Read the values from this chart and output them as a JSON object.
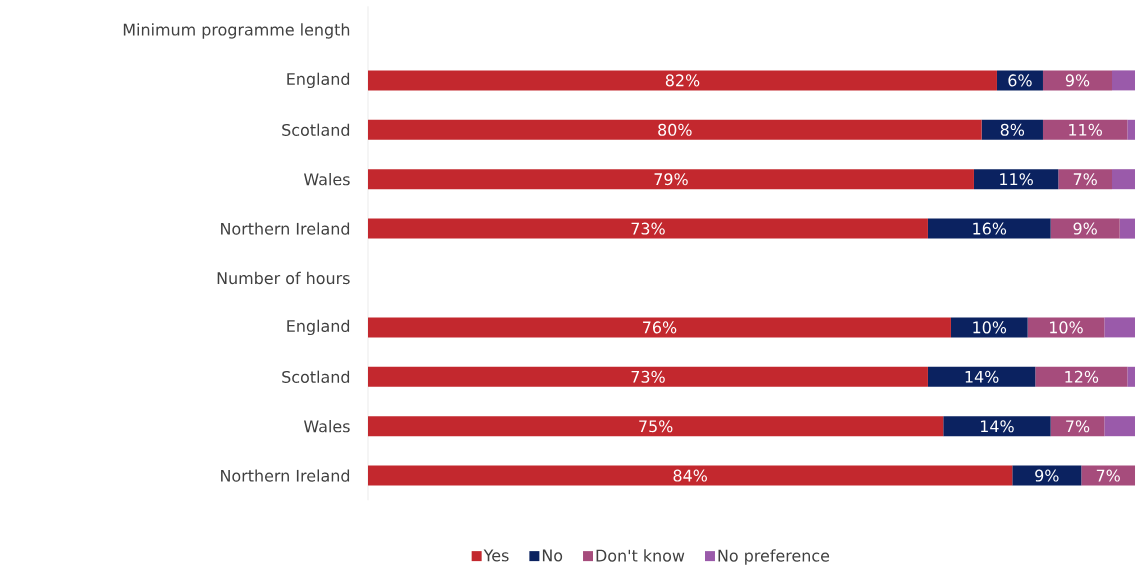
{
  "chart_data": {
    "type": "bar",
    "orientation": "horizontal",
    "stacked": true,
    "legend": "bottom",
    "categories": [
      "Minimum programme length",
      "England",
      "Scotland",
      "Wales",
      "Northern Ireland",
      "Number of hours",
      "England",
      "Scotland",
      "Wales",
      "Northern Ireland"
    ],
    "series": [
      {
        "name": "Yes",
        "color": "#c3282e",
        "values": [
          null,
          82,
          80,
          79,
          73,
          null,
          76,
          73,
          75,
          84
        ],
        "value_labels": [
          null,
          "82%",
          "80%",
          "79%",
          "73%",
          null,
          "76%",
          "73%",
          "75%",
          "84%"
        ]
      },
      {
        "name": "No",
        "color": "#0b2260",
        "values": [
          null,
          6,
          8,
          11,
          16,
          null,
          10,
          14,
          14,
          9
        ],
        "value_labels": [
          null,
          "6%",
          "8%",
          "11%",
          "16%",
          null,
          "10%",
          "14%",
          "14%",
          "9%"
        ]
      },
      {
        "name": "Don't know",
        "color": "#a64c7c",
        "values": [
          null,
          9,
          11,
          7,
          9,
          null,
          10,
          12,
          7,
          7
        ],
        "value_labels": [
          null,
          "9%",
          "11%",
          "7%",
          "9%",
          null,
          "10%",
          "12%",
          "7%",
          "7%"
        ]
      },
      {
        "name": "No preference",
        "color": "#9a5aaa",
        "values": [
          null,
          3,
          1,
          3,
          2,
          null,
          4,
          1,
          4,
          null
        ]
      }
    ]
  }
}
